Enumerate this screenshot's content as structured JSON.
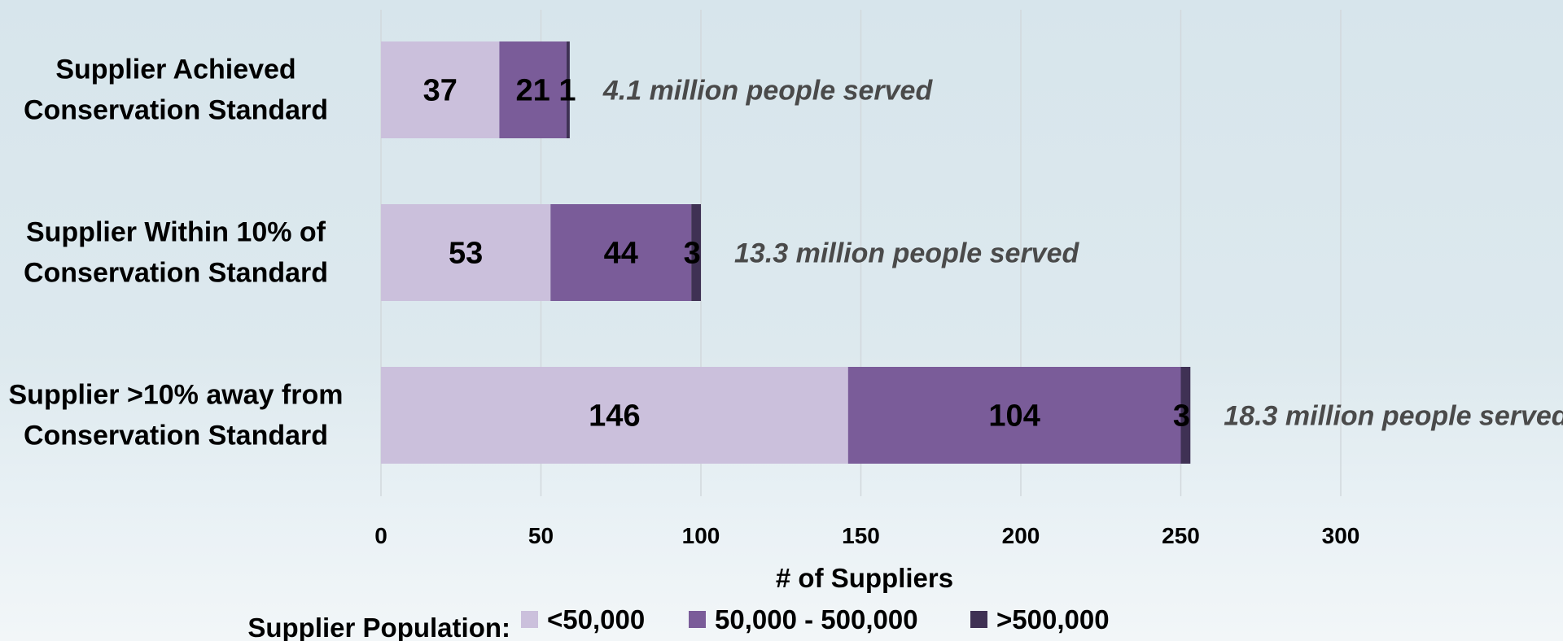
{
  "chart_data": {
    "type": "bar",
    "orientation": "horizontal",
    "stacked": true,
    "categories": [
      "Supplier Achieved Conservation Standard",
      "Supplier Within 10% of Conservation Standard",
      "Supplier >10% away from Conservation Standard"
    ],
    "category_lines": [
      [
        "Supplier Achieved",
        "Conservation Standard"
      ],
      [
        "Supplier Within 10% of",
        "Conservation Standard"
      ],
      [
        "Supplier >10% away from",
        "Conservation Standard"
      ]
    ],
    "series": [
      {
        "name": "<50,000",
        "values": [
          37,
          53,
          146
        ],
        "color": "#cbc0dc"
      },
      {
        "name": "50,000 - 500,000",
        "values": [
          21,
          44,
          104
        ],
        "color": "#7a5c99"
      },
      {
        "name": ">500,000",
        "values": [
          1,
          3,
          3
        ],
        "color": "#3f3154"
      }
    ],
    "annotations": [
      "4.1 million people served",
      "13.3 million people served",
      "18.3 million people served"
    ],
    "xlabel": "# of Suppliers",
    "xlim": [
      0,
      300
    ],
    "xticks": [
      0,
      50,
      100,
      150,
      200,
      250,
      300
    ],
    "grid": true,
    "legend_title": "Supplier Population:",
    "legend_position": "bottom"
  }
}
